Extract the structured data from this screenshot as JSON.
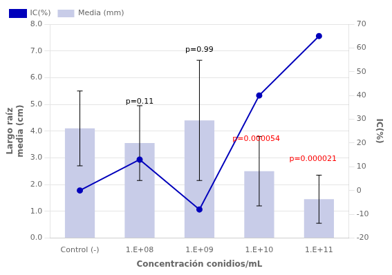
{
  "chart_data": {
    "type": "bar",
    "categories": [
      "Control (-)",
      "1.E+08",
      "1.E+09",
      "1.E+10",
      "1.E+11"
    ],
    "xlabel": "Concentración conidios/mL",
    "ylabel": [
      "Largo raíz",
      "media (cm)"
    ],
    "y2label": "IC(%)",
    "series": [
      {
        "name": "Media (mm)",
        "type": "bar",
        "color": "#c8cce8",
        "values": [
          4.1,
          3.55,
          4.4,
          2.5,
          1.45
        ],
        "errors": [
          1.4,
          1.4,
          2.25,
          1.3,
          0.9
        ]
      },
      {
        "name": "IC(%)",
        "type": "line",
        "color": "#0000BB",
        "marker": "circle",
        "line_style": "solid",
        "axis": "y2",
        "values": [
          0,
          13,
          -8,
          40,
          65
        ]
      }
    ],
    "ylim": [
      0.0,
      8.0
    ],
    "yticks": [
      {
        "value": 0,
        "label": "0.0"
      },
      {
        "value": 1,
        "label": "1.0"
      },
      {
        "value": 2,
        "label": "2.0"
      },
      {
        "value": 3,
        "label": "3.0"
      },
      {
        "value": 4,
        "label": "4.0"
      },
      {
        "value": 5,
        "label": "5.0"
      },
      {
        "value": 6,
        "label": "6.0"
      },
      {
        "value": 7,
        "label": "7.0"
      },
      {
        "value": 8,
        "label": "8.0"
      }
    ],
    "y2lim": [
      -20,
      70
    ],
    "y2ticks": [
      -20,
      -10,
      0,
      10,
      20,
      30,
      40,
      50,
      60,
      70
    ],
    "grid": true,
    "legend": "upper left",
    "annotations": [
      {
        "text": "p=0.11",
        "x": 1,
        "y": 4.95,
        "color": "black"
      },
      {
        "text": "p=0.99",
        "x": 2,
        "y": 6.9,
        "color": "black"
      },
      {
        "text": "p=0.000054",
        "x": 2.95,
        "y": 3.55,
        "color": "red"
      },
      {
        "text": "p=0.000021",
        "x": 3.9,
        "y": 2.8,
        "color": "red"
      }
    ]
  }
}
